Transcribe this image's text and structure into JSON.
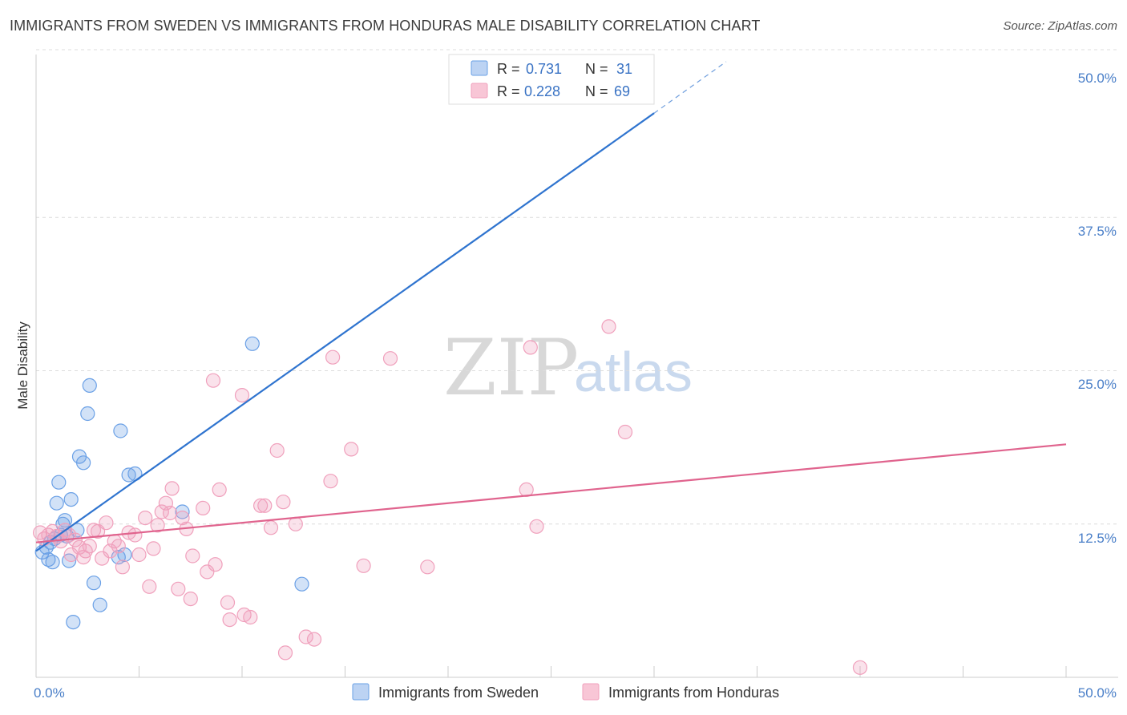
{
  "header": {
    "title": "IMMIGRANTS FROM SWEDEN VS IMMIGRANTS FROM HONDURAS MALE DISABILITY CORRELATION CHART",
    "source": "Source: ZipAtlas.com"
  },
  "watermark": {
    "zip": "ZIP",
    "atlas": "atlas"
  },
  "chart_data": {
    "type": "scatter",
    "ylabel": "Male Disability",
    "xlim": [
      0,
      50
    ],
    "ylim": [
      0,
      50
    ],
    "x_tick_labels": [
      "0.0%",
      "50.0%"
    ],
    "y_ticks": [
      12.5,
      25.0,
      37.5,
      50.0
    ],
    "y_tick_labels": [
      "12.5%",
      "25.0%",
      "37.5%",
      "50.0%"
    ],
    "grid": true,
    "legend_position": "top-center",
    "series": [
      {
        "name": "Immigrants from Sweden",
        "color": "#6aa0e6",
        "line_color": "#2f74cf",
        "R": "0.731",
        "N": "31",
        "trend": {
          "x0": 0,
          "y0": 10.3,
          "x1": 30,
          "y1": 46.0,
          "dash_x1": 33.5,
          "dash_y1": 50.2
        },
        "points": [
          [
            0.3,
            10.2
          ],
          [
            0.5,
            10.6
          ],
          [
            0.6,
            9.6
          ],
          [
            0.7,
            11.0
          ],
          [
            0.8,
            9.4
          ],
          [
            0.9,
            11.3
          ],
          [
            1.0,
            14.2
          ],
          [
            1.1,
            15.9
          ],
          [
            1.2,
            11.6
          ],
          [
            1.3,
            12.5
          ],
          [
            1.4,
            12.8
          ],
          [
            1.5,
            11.5
          ],
          [
            1.6,
            9.5
          ],
          [
            1.7,
            14.5
          ],
          [
            1.8,
            4.5
          ],
          [
            2.0,
            12.0
          ],
          [
            2.1,
            18.0
          ],
          [
            2.3,
            17.5
          ],
          [
            2.5,
            21.5
          ],
          [
            2.6,
            23.8
          ],
          [
            2.8,
            7.7
          ],
          [
            3.1,
            5.9
          ],
          [
            4.0,
            9.8
          ],
          [
            4.1,
            20.1
          ],
          [
            4.3,
            10.0
          ],
          [
            4.5,
            16.5
          ],
          [
            4.8,
            16.6
          ],
          [
            7.1,
            13.5
          ],
          [
            10.5,
            27.2
          ],
          [
            12.9,
            7.6
          ],
          [
            26.0,
            49.2
          ]
        ]
      },
      {
        "name": "Immigrants from Honduras",
        "color": "#f0a0bc",
        "line_color": "#e0648e",
        "R": "0.228",
        "N": "69",
        "trend": {
          "x0": 0,
          "y0": 11.0,
          "x1": 50,
          "y1": 19.0
        },
        "points": [
          [
            0.2,
            11.8
          ],
          [
            0.4,
            11.3
          ],
          [
            0.6,
            11.6
          ],
          [
            0.8,
            11.9
          ],
          [
            1.0,
            11.5
          ],
          [
            1.2,
            11.1
          ],
          [
            1.4,
            12.0
          ],
          [
            1.6,
            11.6
          ],
          [
            1.7,
            10.0
          ],
          [
            1.9,
            11.2
          ],
          [
            2.1,
            10.6
          ],
          [
            2.3,
            9.8
          ],
          [
            2.4,
            10.3
          ],
          [
            2.6,
            10.7
          ],
          [
            2.8,
            12.0
          ],
          [
            3.0,
            11.9
          ],
          [
            3.2,
            9.7
          ],
          [
            3.4,
            12.6
          ],
          [
            3.6,
            10.3
          ],
          [
            3.8,
            11.1
          ],
          [
            4.0,
            10.7
          ],
          [
            4.2,
            9.0
          ],
          [
            4.5,
            11.8
          ],
          [
            4.8,
            11.6
          ],
          [
            5.0,
            10.0
          ],
          [
            5.3,
            13.0
          ],
          [
            5.5,
            7.4
          ],
          [
            5.7,
            10.5
          ],
          [
            5.9,
            12.4
          ],
          [
            6.1,
            13.5
          ],
          [
            6.3,
            14.2
          ],
          [
            6.5,
            13.4
          ],
          [
            6.6,
            15.4
          ],
          [
            6.9,
            7.2
          ],
          [
            7.1,
            13.0
          ],
          [
            7.3,
            12.1
          ],
          [
            7.5,
            6.4
          ],
          [
            7.6,
            9.9
          ],
          [
            8.1,
            13.8
          ],
          [
            8.3,
            8.6
          ],
          [
            8.6,
            24.2
          ],
          [
            8.7,
            9.2
          ],
          [
            8.9,
            15.3
          ],
          [
            9.3,
            6.1
          ],
          [
            9.4,
            4.7
          ],
          [
            10.0,
            23.0
          ],
          [
            10.1,
            5.1
          ],
          [
            10.4,
            4.9
          ],
          [
            10.9,
            14.0
          ],
          [
            11.1,
            14.0
          ],
          [
            11.4,
            12.2
          ],
          [
            11.7,
            18.5
          ],
          [
            12.0,
            14.3
          ],
          [
            12.1,
            2.0
          ],
          [
            12.6,
            12.5
          ],
          [
            13.1,
            3.3
          ],
          [
            13.5,
            3.1
          ],
          [
            14.3,
            16.0
          ],
          [
            14.4,
            26.1
          ],
          [
            15.3,
            18.6
          ],
          [
            15.9,
            9.1
          ],
          [
            17.2,
            26.0
          ],
          [
            19.0,
            9.0
          ],
          [
            23.8,
            15.3
          ],
          [
            24.0,
            26.9
          ],
          [
            24.3,
            12.3
          ],
          [
            27.8,
            28.6
          ],
          [
            28.6,
            20.0
          ],
          [
            40.0,
            0.8
          ]
        ]
      }
    ]
  }
}
